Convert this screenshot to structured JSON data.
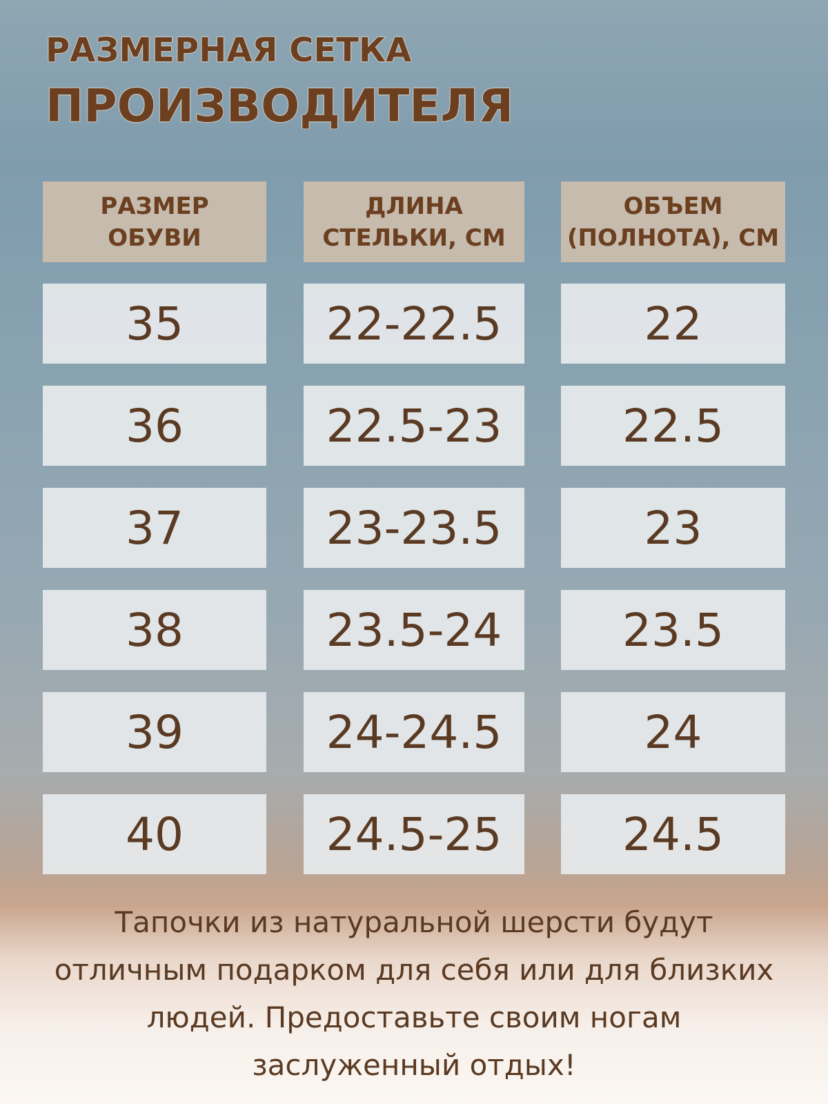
{
  "header": {
    "title_lines": [
      "РАЗМЕРНАЯ СЕТКА",
      "ПРОИЗВОДИТЕЛЯ"
    ]
  },
  "table": {
    "columns": [
      [
        "РАЗМЕР",
        "ОБУВИ"
      ],
      [
        "ДЛИНА",
        "СТЕЛЬКИ, СМ"
      ],
      [
        "ОБЪЕМ",
        "(ПОЛНОТА), СМ"
      ]
    ],
    "rows": [
      [
        "35",
        "22-22.5",
        "22"
      ],
      [
        "36",
        "22.5-23",
        "22.5"
      ],
      [
        "37",
        "23-23.5",
        "23"
      ],
      [
        "38",
        "23.5-24",
        "23.5"
      ],
      [
        "39",
        "24-24.5",
        "24"
      ],
      [
        "40",
        "24.5-25",
        "24.5"
      ]
    ]
  },
  "footer": {
    "lines": [
      "Тапочки из натуральной шерсти будут",
      "отличным подарком для себя или для близких",
      "людей. Предоставьте своим ногам",
      "заслуженный отдых!"
    ]
  }
}
